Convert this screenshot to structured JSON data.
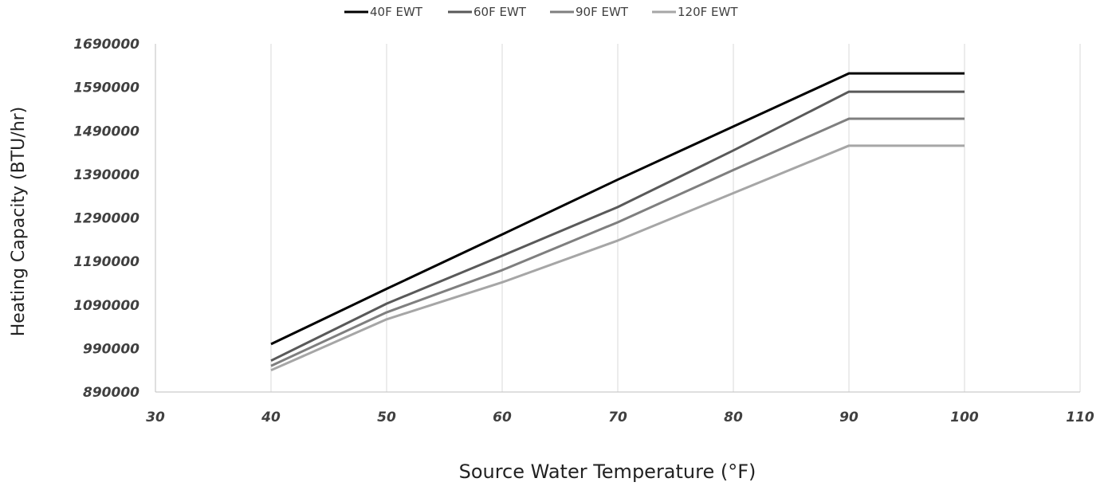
{
  "chart_data": {
    "type": "line",
    "title": "",
    "xlabel": "Source Water Temperature (°F)",
    "ylabel": "Heating Capacity (BTU/hr)",
    "xlim": [
      30,
      110
    ],
    "ylim": [
      890000,
      1690000
    ],
    "x_ticks": [
      30,
      40,
      50,
      60,
      70,
      80,
      90,
      100,
      110
    ],
    "y_ticks": [
      890000,
      990000,
      1090000,
      1190000,
      1290000,
      1390000,
      1490000,
      1590000,
      1690000
    ],
    "grid": "vertical",
    "legend_position": "top",
    "x": [
      40,
      50,
      60,
      70,
      80,
      90,
      100
    ],
    "series": [
      {
        "name": "40F EWT",
        "color": "#000000",
        "values": [
          1000000,
          1127000,
          1252000,
          1378000,
          1500000,
          1622000,
          1622000
        ]
      },
      {
        "name": "60F EWT",
        "color": "#595959",
        "values": [
          962000,
          1093000,
          1203000,
          1315000,
          1445000,
          1580000,
          1580000
        ]
      },
      {
        "name": "90F EWT",
        "color": "#7f7f7f",
        "values": [
          950000,
          1073000,
          1170000,
          1280000,
          1400000,
          1518000,
          1518000
        ]
      },
      {
        "name": "120F EWT",
        "color": "#a6a6a6",
        "values": [
          940000,
          1057000,
          1142000,
          1238000,
          1347000,
          1456000,
          1456000
        ]
      }
    ]
  }
}
